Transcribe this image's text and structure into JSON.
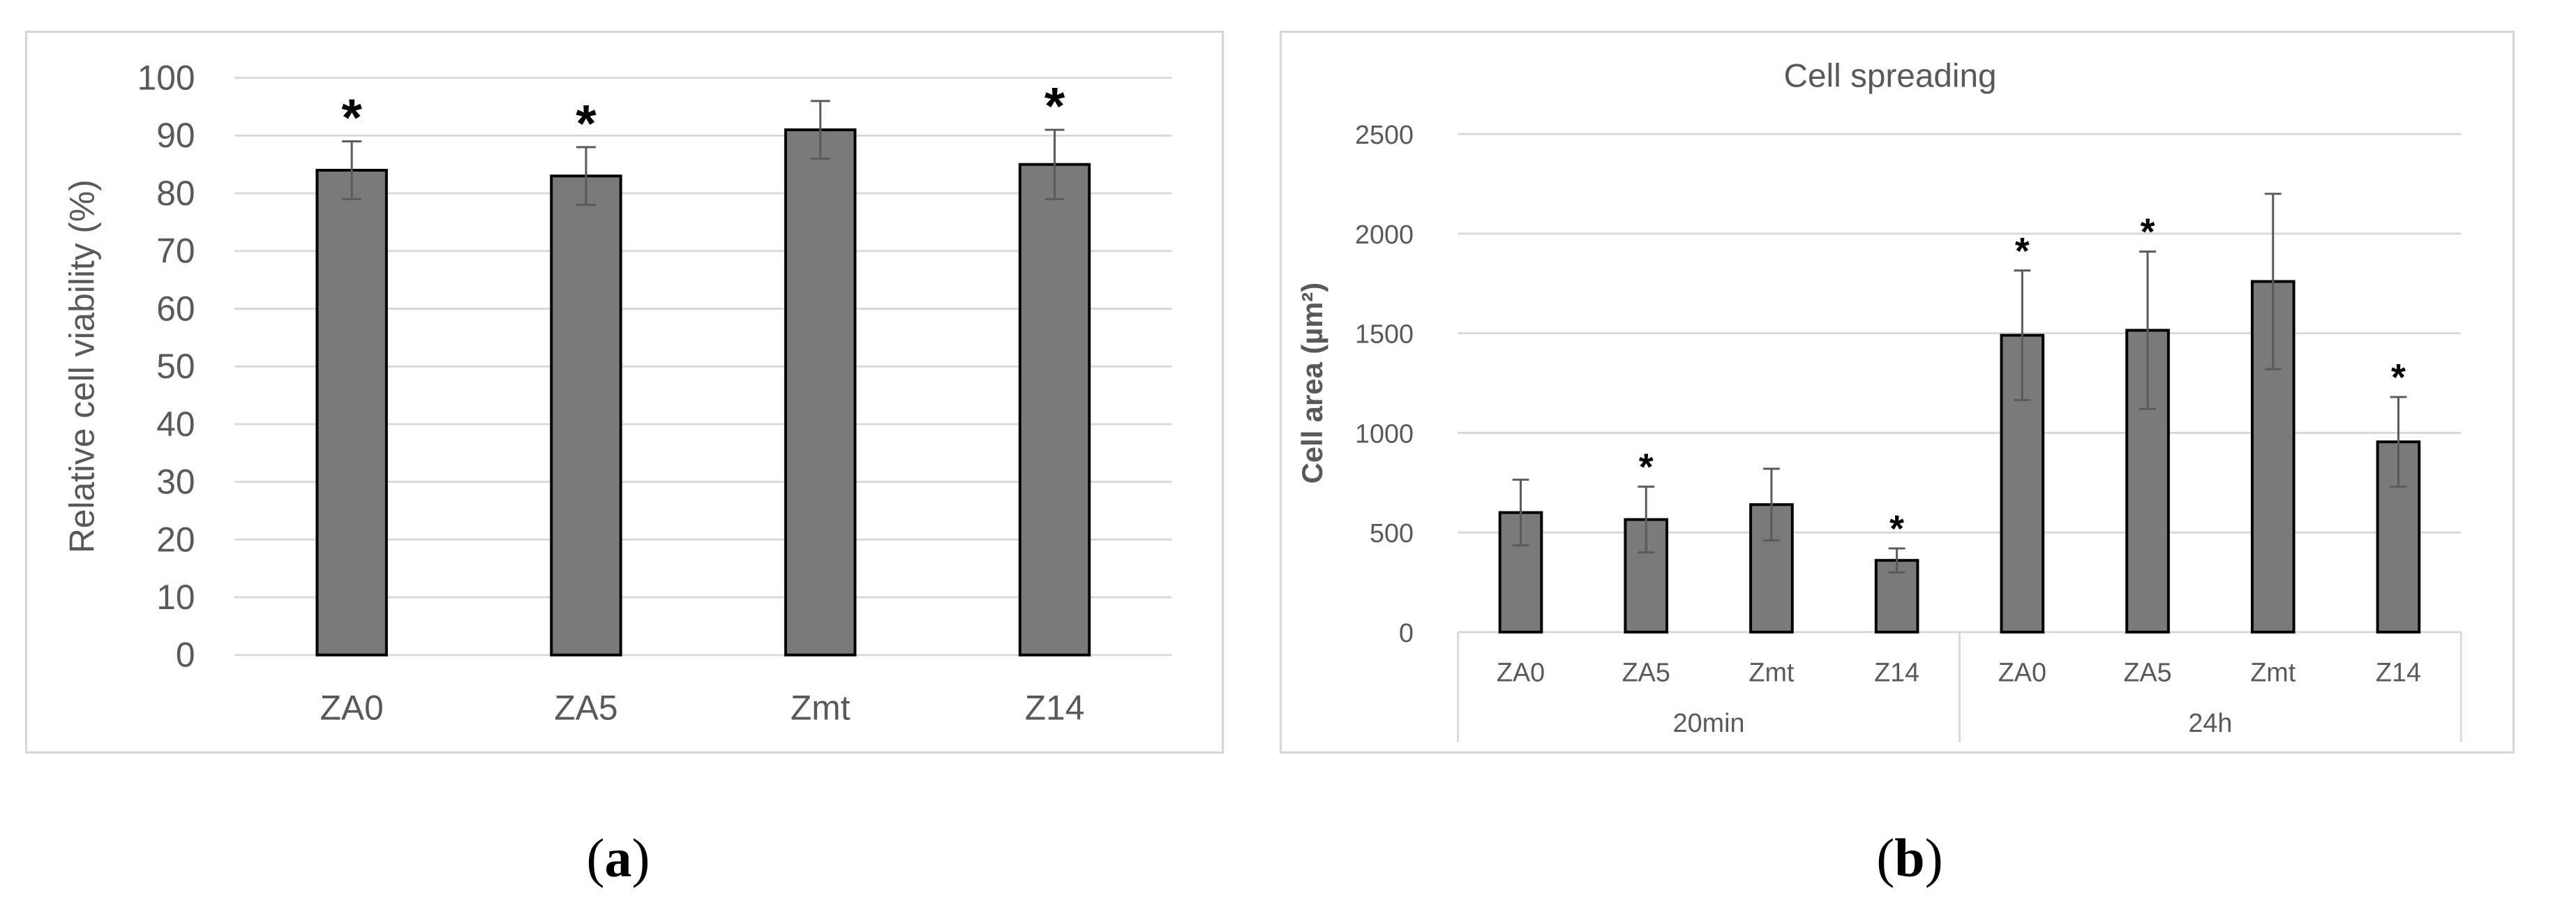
{
  "colors": {
    "bar": "#7a7a7a",
    "bar_outline": "#000000",
    "error_bar": "#5a5a5a",
    "gridline": "#d9d9d9",
    "axis_text": "#595959",
    "panel_border": "#d6d6d6"
  },
  "captions": {
    "a_open": "(",
    "a_letter": "a",
    "a_close": ")",
    "b_open": "(",
    "b_letter": "b",
    "b_close": ")"
  },
  "chart_data": [
    {
      "type": "bar",
      "title": "",
      "xlabel": "",
      "ylabel": "Relative cell viability (%)",
      "categories": [
        "ZA0",
        "ZA5",
        "Zmt",
        "Z14"
      ],
      "values": [
        84,
        83,
        91,
        85
      ],
      "errors": [
        5,
        5,
        5,
        6
      ],
      "significance": [
        "*",
        "*",
        "",
        "*"
      ],
      "ylim": [
        0,
        100
      ],
      "yticks": [
        0,
        10,
        20,
        30,
        40,
        50,
        60,
        70,
        80,
        90,
        100
      ],
      "grid": true,
      "legend": "none"
    },
    {
      "type": "bar",
      "title": "Cell spreading",
      "xlabel": "",
      "ylabel": "Cell area (µm²)",
      "groups": [
        {
          "label": "20min",
          "categories": [
            "ZA0",
            "ZA5",
            "Zmt",
            "Z14"
          ]
        },
        {
          "label": "24h",
          "categories": [
            "ZA0",
            "ZA5",
            "Zmt",
            "Z14"
          ]
        }
      ],
      "values": [
        600,
        565,
        640,
        360,
        1490,
        1515,
        1760,
        955
      ],
      "errors": [
        165,
        165,
        180,
        60,
        325,
        395,
        440,
        225
      ],
      "significance": [
        "",
        "*",
        "",
        "*",
        "*",
        "*",
        "",
        "*"
      ],
      "ylim": [
        0,
        2500
      ],
      "yticks": [
        0,
        500,
        1000,
        1500,
        2000,
        2500
      ],
      "grid": true,
      "legend": "none"
    }
  ]
}
